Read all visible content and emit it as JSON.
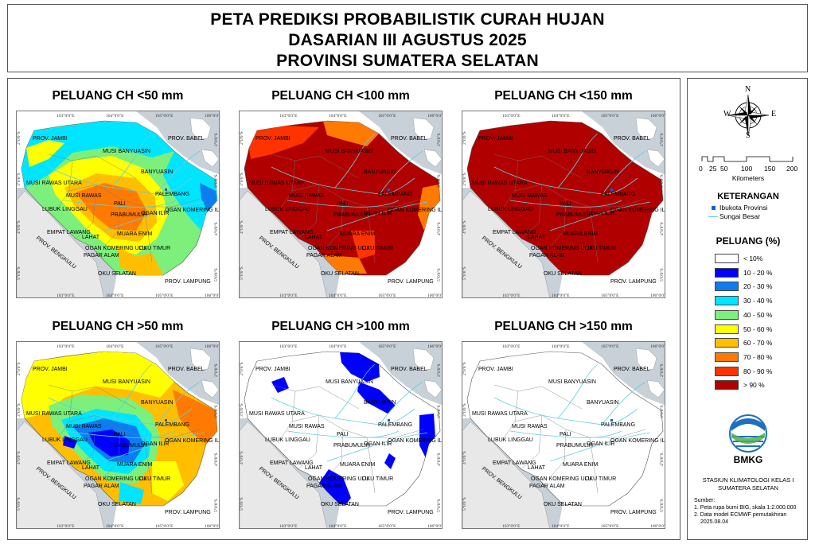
{
  "title": {
    "line1": "PETA PREDIKSI PROBABILISTIK CURAH HUJAN",
    "line2": "DASARIAN III AGUSTUS 2025",
    "line3": "PROVINSI SUMATERA SELATAN"
  },
  "panels": [
    {
      "title": "PELUANG CH <50 mm",
      "scheme": "p50lt"
    },
    {
      "title": "PELUANG CH <100 mm",
      "scheme": "p100lt"
    },
    {
      "title": "PELUANG CH <150 mm",
      "scheme": "p150lt"
    },
    {
      "title": "PELUANG CH >50 mm",
      "scheme": "p50gt"
    },
    {
      "title": "PELUANG CH >100 mm",
      "scheme": "p100gt"
    },
    {
      "title": "PELUANG CH >150 mm",
      "scheme": "p150gt"
    }
  ],
  "map_labels": {
    "prov_jambi": "PROV. JAMBI",
    "prov_babel": "PROV. BABEL",
    "prov_bengkulu": "PROV. BENGKULU",
    "prov_lampung": "PROV. LAMPUNG",
    "musi_banyuasin": "MUSI BANYUASIN",
    "banyuasin": "BANYUASIN",
    "musi_rawas_utara": "MUSI RAWAS UTARA",
    "musi_rawas": "MUSI RAWAS",
    "palembang": "PALEMBANG",
    "lubuk_linggau": "LUBUK LINGGAU",
    "pali": "PALI",
    "muara_enim_top": "MUARA ENIM",
    "prabumulih": "PRABUMULIH",
    "ogan_ilir": "OGAN ILIR",
    "ogan_komering_ilir": "OGAN KOMERING ILIR",
    "empat_lawang": "EMPAT LAWANG",
    "lahat": "LAHAT",
    "muara_enim": "MUARA ENIM",
    "oku_timur": "OGAN KOMERING ULU",
    "oku_timur2": "OKU TIMUR",
    "pagar_alam": "PAGAR ALAM",
    "oku_selatan": "OKU SELATAN"
  },
  "ticks": {
    "top": [
      "103°0'0\"E",
      "104°0'0\"E",
      "105°0'0\"E",
      "106°0'0\"E"
    ],
    "left": [
      "2°0'0\"S",
      "3°0'0\"S",
      "4°0'0\"S",
      "5°0'0\"S"
    ]
  },
  "compass": {
    "n": "N",
    "s": "S",
    "e": "E",
    "w": "W"
  },
  "scalebar": {
    "ticks": [
      "0",
      "25",
      "50",
      "100",
      "150",
      "200"
    ],
    "unit": "Kilometers"
  },
  "legend": {
    "keterangan_title": "KETERANGAN",
    "ibukota": "Ibukota Provinsi",
    "sungai": "Sungai Besar",
    "peluang_title": "PELUANG (%)",
    "classes": [
      {
        "label": "< 10%",
        "color": "#ffffff"
      },
      {
        "label": "10 - 20 %",
        "color": "#0000ff"
      },
      {
        "label": "20 - 30 %",
        "color": "#0c7df0"
      },
      {
        "label": "30 - 40 %",
        "color": "#00e5ff"
      },
      {
        "label": "40 - 50 %",
        "color": "#7cf07a"
      },
      {
        "label": "50 - 60 %",
        "color": "#ffff00"
      },
      {
        "label": "60 - 70 %",
        "color": "#ffbf00"
      },
      {
        "label": "70 - 80 %",
        "color": "#ff7a00"
      },
      {
        "label": "80 - 90 %",
        "color": "#ff3300"
      },
      {
        "label": "> 90 %",
        "color": "#b00000"
      }
    ],
    "agency": "BMKG",
    "station1": "STASIUN KLIMATOLOGI KELAS I",
    "station2": "SUMATERA SELATAN",
    "sumber": "Sumber:",
    "source1": "1. Peta rupa bumi BIG, skala 1:2.000.000",
    "source2": "2. Data model ECMWF pemutakhiran",
    "source3": "2025.08.04"
  }
}
